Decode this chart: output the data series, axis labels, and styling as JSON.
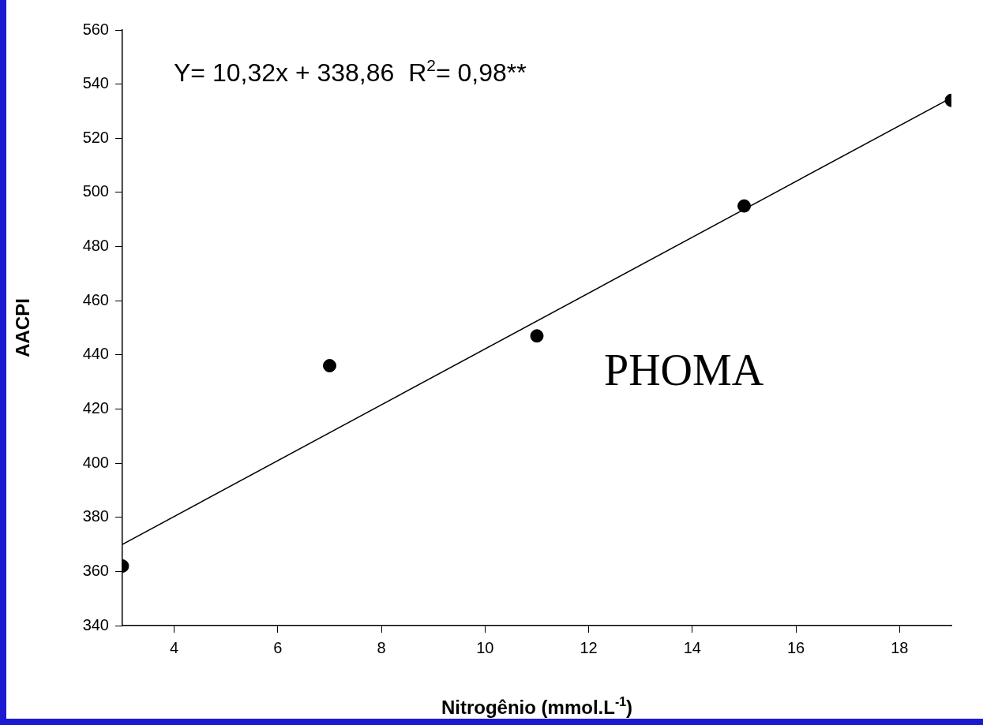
{
  "chart_data": {
    "type": "scatter",
    "xlabel": "Nitrogênio (mmol.L$^{-1}$)",
    "ylabel": "AACPI",
    "annotations": [
      "Y= 10,32x + 338,86  R$^{2}$= 0,98**",
      "PHOMA"
    ],
    "x": [
      3,
      7,
      11,
      15,
      19
    ],
    "series": [
      {
        "color": "#000000",
        "values": [
          362,
          436,
          447,
          495,
          534
        ]
      },
      {
        "type": "line",
        "color": "#000000",
        "x": [
          3,
          19
        ],
        "values": [
          370,
          535
        ],
        "marker": "none"
      }
    ],
    "xlim": [
      3,
      19
    ],
    "xticks": [
      4,
      6,
      8,
      10,
      12,
      14,
      16,
      18
    ],
    "ylim": [
      340,
      560
    ],
    "yticks": [
      340,
      360,
      380,
      400,
      420,
      440,
      460,
      480,
      500,
      520,
      540,
      560
    ],
    "grid": false,
    "legend": false,
    "marker": "circle",
    "line_style": "solid"
  }
}
